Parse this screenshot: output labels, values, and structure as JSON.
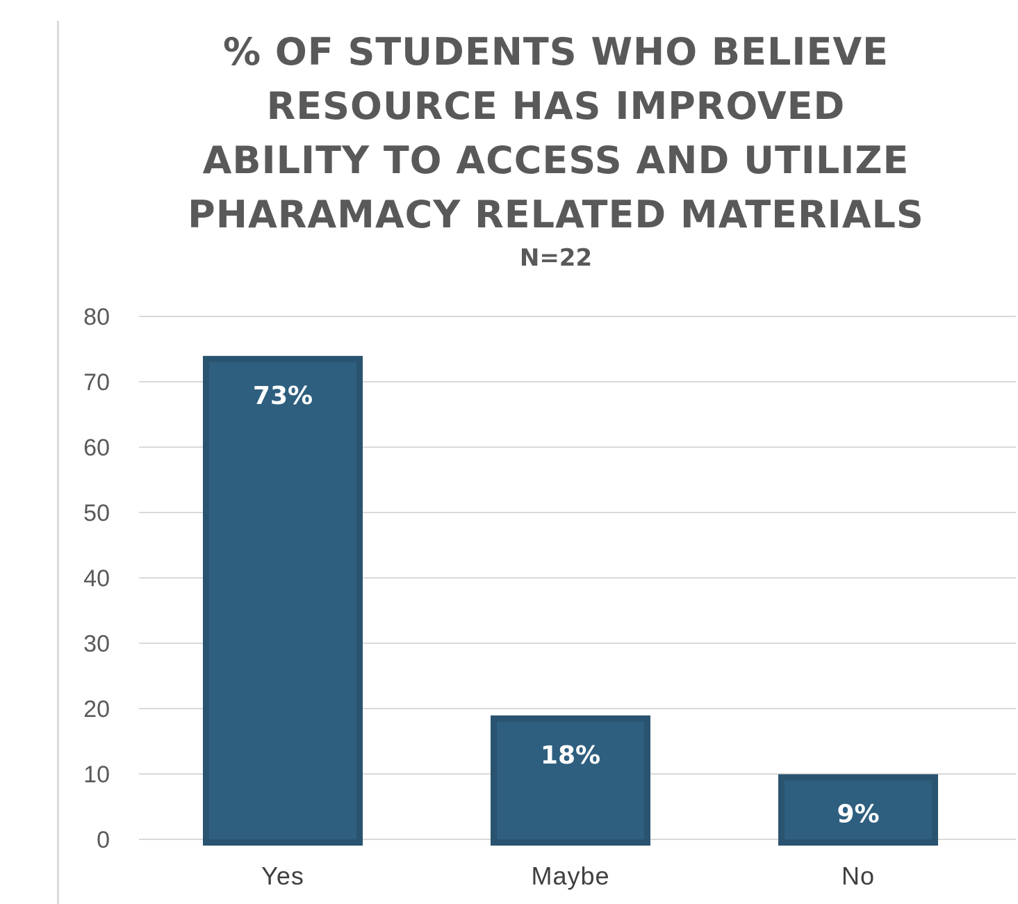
{
  "chart_data": {
    "type": "bar",
    "title": [
      "% OF STUDENTS WHO BELIEVE",
      "RESOURCE HAS IMPROVED",
      "ABILITY TO ACCESS AND UTILIZE",
      "PHARAMACY RELATED MATERIALS"
    ],
    "subtitle": "N=22",
    "categories": [
      "Yes",
      "Maybe",
      "No"
    ],
    "values": [
      73,
      18,
      9
    ],
    "data_labels": [
      "73%",
      "18%",
      "9%"
    ],
    "ylim": [
      0,
      80
    ],
    "yticks": [
      0,
      10,
      20,
      30,
      40,
      50,
      60,
      70,
      80
    ],
    "xlabel": "",
    "ylabel": "",
    "grid": true,
    "legend": "none",
    "bar_color": "#2e5f7f",
    "bar_border_color": "#29536f",
    "grid_color": "#d9d9d9"
  }
}
